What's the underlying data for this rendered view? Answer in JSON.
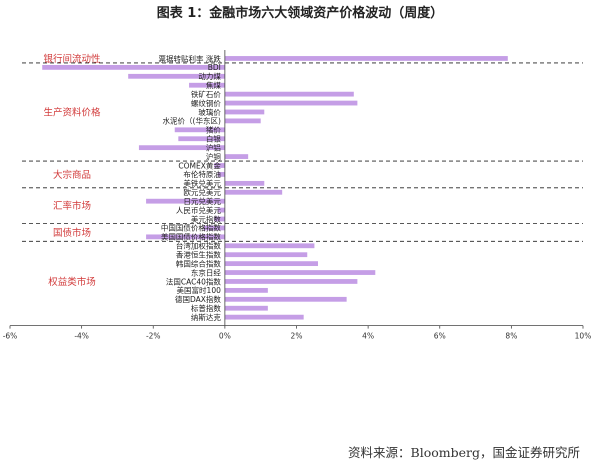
{
  "title": "图表 1：金融市场六大领域资产价格波动（周度）",
  "source": "资料来源：Bloomberg，国金证券研究所",
  "chart_data": {
    "type": "bar",
    "orientation": "horizontal",
    "title": "图表 1：金融市场六大领域资产价格波动（周度）",
    "xlabel": "",
    "ylabel": "",
    "xlim": [
      -6,
      10
    ],
    "x_ticks": [
      -6,
      -4,
      -2,
      0,
      2,
      4,
      6,
      8,
      10
    ],
    "x_tick_labels": [
      "-6%",
      "-4%",
      "-2%",
      "0%",
      "2%",
      "4%",
      "6%",
      "8%",
      "10%"
    ],
    "bar_color": "#c59ee6",
    "group_label_color": "#d23b3b",
    "categories": [
      "票据转贴利率 涨跌",
      "BDI",
      "动力煤",
      "焦煤",
      "铁矿石价",
      "螺纹钢价",
      "玻璃价",
      "水泥价（(华东区)",
      "猪价",
      "白银",
      "沪铝",
      "沪铜",
      "COMEX黄金",
      "布伦特原油",
      "美铁兑美元",
      "欧元兑美元",
      "日元兑美元",
      "人民币兑美元",
      "美元指数",
      "中国国债价格指数",
      "美国国债价格指数",
      "台湾加权指数",
      "香港恒生指数",
      "韩国综合指数",
      "东京日经",
      "法国CAC40指数",
      "美国富时100",
      "德国DAX指数",
      "标普指数",
      "纳斯达克"
    ],
    "values": [
      7.9,
      -5.1,
      -2.7,
      -1.0,
      3.6,
      3.7,
      1.1,
      1.0,
      -1.4,
      -1.3,
      -2.4,
      0.65,
      -0.3,
      -0.2,
      1.1,
      1.6,
      -2.2,
      -0.2,
      -0.3,
      -0.6,
      -2.2,
      2.5,
      2.3,
      2.6,
      4.2,
      3.7,
      1.2,
      3.4,
      1.2,
      2.2
    ],
    "groups": [
      {
        "name": "银行间流动性",
        "start": 0,
        "end": 0
      },
      {
        "name": "生产资料价格",
        "start": 1,
        "end": 11
      },
      {
        "name": "大宗商品",
        "start": 12,
        "end": 14
      },
      {
        "name": "汇率市场",
        "start": 15,
        "end": 18
      },
      {
        "name": "国债市场",
        "start": 19,
        "end": 20
      },
      {
        "name": "权益类市场",
        "start": 21,
        "end": 29
      }
    ],
    "grid": false,
    "legend": "none"
  }
}
